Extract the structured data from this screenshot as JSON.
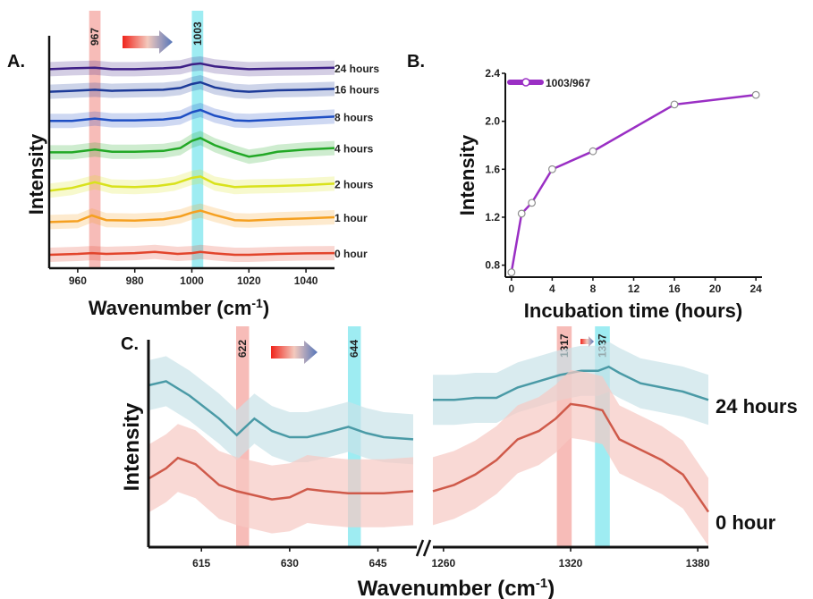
{
  "chart_data": [
    {
      "panel": "A.",
      "type": "line",
      "xlabel": "Wavenumber (cm",
      "xlabel_sup": "-1",
      "xlabel_close": ")",
      "ylabel": "Intensity",
      "xlim": [
        950,
        1050
      ],
      "xticks": [
        "960",
        "980",
        "1000",
        "1020",
        "1040"
      ],
      "grid": false,
      "bands": [
        {
          "label": "967",
          "center": 966,
          "width": 4,
          "color": "#f4a6a0"
        },
        {
          "label": "1003",
          "center": 1002,
          "width": 4,
          "color": "#7ee6ee"
        }
      ],
      "series": [
        {
          "name": "0 hour",
          "color": "#e2452c",
          "offset": 0,
          "x": [
            950,
            960,
            965,
            970,
            980,
            987,
            995,
            1000,
            1003,
            1008,
            1015,
            1020,
            1030,
            1040,
            1050
          ],
          "y": [
            0.0,
            0.03,
            0.06,
            0.03,
            0.06,
            0.1,
            0.03,
            0.06,
            0.1,
            0.05,
            0.0,
            0.0,
            0.03,
            0.05,
            0.06
          ]
        },
        {
          "name": "1 hour",
          "color": "#f5a020",
          "offset": 1,
          "x": [
            950,
            960,
            965,
            970,
            980,
            990,
            996,
            1000,
            1003,
            1008,
            1015,
            1020,
            1030,
            1040,
            1050
          ],
          "y": [
            0.05,
            0.08,
            0.28,
            0.12,
            0.1,
            0.15,
            0.25,
            0.38,
            0.45,
            0.3,
            0.12,
            0.1,
            0.15,
            0.18,
            0.22
          ]
        },
        {
          "name": "2 hours",
          "color": "#d9e21c",
          "offset": 2,
          "x": [
            950,
            958,
            966,
            972,
            980,
            988,
            994,
            1000,
            1003,
            1008,
            1015,
            1020,
            1030,
            1040,
            1050
          ],
          "y": [
            0.05,
            0.15,
            0.35,
            0.2,
            0.18,
            0.22,
            0.3,
            0.5,
            0.55,
            0.3,
            0.18,
            0.2,
            0.22,
            0.25,
            0.3
          ]
        },
        {
          "name": "4 hours",
          "color": "#22a826",
          "offset": 3,
          "x": [
            950,
            958,
            966,
            972,
            980,
            990,
            996,
            1000,
            1003,
            1008,
            1015,
            1020,
            1025,
            1030,
            1040,
            1050
          ],
          "y": [
            0.3,
            0.3,
            0.4,
            0.32,
            0.32,
            0.35,
            0.45,
            0.7,
            0.8,
            0.55,
            0.3,
            0.15,
            0.22,
            0.32,
            0.4,
            0.45
          ]
        },
        {
          "name": "8 hours",
          "color": "#1f4fc4",
          "offset": 4,
          "x": [
            950,
            958,
            966,
            972,
            980,
            990,
            996,
            1000,
            1003,
            1008,
            1015,
            1020,
            1030,
            1040,
            1050
          ],
          "y": [
            0.4,
            0.4,
            0.48,
            0.42,
            0.42,
            0.45,
            0.52,
            0.7,
            0.78,
            0.58,
            0.42,
            0.4,
            0.45,
            0.5,
            0.55
          ]
        },
        {
          "name": "16 hours",
          "color": "#1d3b99",
          "offset": 5,
          "x": [
            950,
            958,
            966,
            972,
            980,
            990,
            996,
            1000,
            1003,
            1008,
            1015,
            1020,
            1030,
            1040,
            1050
          ],
          "y": [
            0.45,
            0.48,
            0.52,
            0.48,
            0.5,
            0.52,
            0.58,
            0.72,
            0.78,
            0.6,
            0.48,
            0.45,
            0.5,
            0.52,
            0.55
          ]
        },
        {
          "name": "24 hours",
          "color": "#3d1f86",
          "offset": 6,
          "x": [
            950,
            958,
            966,
            972,
            980,
            990,
            996,
            1000,
            1003,
            1008,
            1015,
            1020,
            1030,
            1040,
            1050
          ],
          "y": [
            0.55,
            0.58,
            0.6,
            0.55,
            0.55,
            0.58,
            0.62,
            0.72,
            0.75,
            0.65,
            0.58,
            0.55,
            0.57,
            0.58,
            0.6
          ]
        }
      ]
    },
    {
      "panel": "B.",
      "type": "line",
      "xlabel": "Incubation time (hours)",
      "ylabel": "Intensity",
      "xlim": [
        -0.6,
        24.6
      ],
      "ylim": [
        0.7,
        2.4
      ],
      "xticks": [
        0,
        4,
        8,
        12,
        16,
        20,
        24
      ],
      "yticks": [
        "0.8",
        "1.2",
        "1.6",
        "2.0",
        "2.4"
      ],
      "ytick_values": [
        0.8,
        1.2,
        1.6,
        2.0,
        2.4
      ],
      "grid": false,
      "legend": "top-left",
      "series": [
        {
          "name": "1003/967",
          "color": "#9a2fc4",
          "x": [
            0,
            1,
            2,
            4,
            8,
            16,
            24
          ],
          "y": [
            0.74,
            1.23,
            1.32,
            1.6,
            1.75,
            2.14,
            2.22
          ]
        }
      ]
    },
    {
      "panel": "C.",
      "type": "line",
      "xlabel": "Wavenumber (cm",
      "xlabel_sup": "-1",
      "xlabel_close": ")",
      "ylabel": "Intensity",
      "grid": false,
      "left_range": [
        606,
        651
      ],
      "left_ticks": [
        "615",
        "630",
        "645"
      ],
      "right_range": [
        1255,
        1385
      ],
      "right_ticks": [
        "1260",
        "1320",
        "1380"
      ],
      "bands": [
        {
          "label": "622",
          "center": 622,
          "width": 2.2,
          "color": "#f4a6a0",
          "segment": "left"
        },
        {
          "label": "644",
          "center": 641,
          "width": 2.2,
          "color": "#7ee6ee",
          "segment": "left"
        },
        {
          "label": "1317",
          "center": 1317,
          "width": 7,
          "color": "#f4a6a0",
          "segment": "right"
        },
        {
          "label": "1337",
          "center": 1335,
          "width": 7,
          "color": "#7ee6ee",
          "segment": "right"
        }
      ],
      "series": [
        {
          "name": "24 hours",
          "color": "#4a9aa6",
          "band": "#c9e3e8",
          "left_x": [
            606,
            609,
            613,
            618,
            621,
            624,
            627,
            630,
            633,
            636,
            640,
            643,
            646,
            651
          ],
          "left_y": [
            0.78,
            0.8,
            0.73,
            0.62,
            0.54,
            0.62,
            0.56,
            0.53,
            0.53,
            0.55,
            0.58,
            0.55,
            0.53,
            0.52
          ],
          "right_x": [
            1255,
            1265,
            1275,
            1285,
            1295,
            1305,
            1315,
            1325,
            1333,
            1338,
            1343,
            1353,
            1363,
            1373,
            1385
          ],
          "right_y": [
            0.71,
            0.71,
            0.72,
            0.72,
            0.77,
            0.8,
            0.83,
            0.85,
            0.85,
            0.87,
            0.84,
            0.79,
            0.77,
            0.75,
            0.71
          ]
        },
        {
          "name": "0 hour",
          "color": "#cf5a4a",
          "band": "#f6c9c3",
          "left_x": [
            606,
            609,
            611,
            614,
            618,
            621,
            624,
            627,
            630,
            633,
            636,
            640,
            643,
            646,
            651
          ],
          "left_y": [
            0.33,
            0.38,
            0.43,
            0.4,
            0.3,
            0.27,
            0.25,
            0.23,
            0.24,
            0.28,
            0.27,
            0.26,
            0.26,
            0.26,
            0.27
          ],
          "right_x": [
            1255,
            1265,
            1275,
            1285,
            1295,
            1305,
            1313,
            1320,
            1327,
            1335,
            1343,
            1353,
            1363,
            1373,
            1385
          ],
          "right_y": [
            0.27,
            0.3,
            0.35,
            0.42,
            0.52,
            0.56,
            0.62,
            0.69,
            0.68,
            0.66,
            0.52,
            0.47,
            0.42,
            0.35,
            0.17
          ]
        }
      ]
    }
  ]
}
